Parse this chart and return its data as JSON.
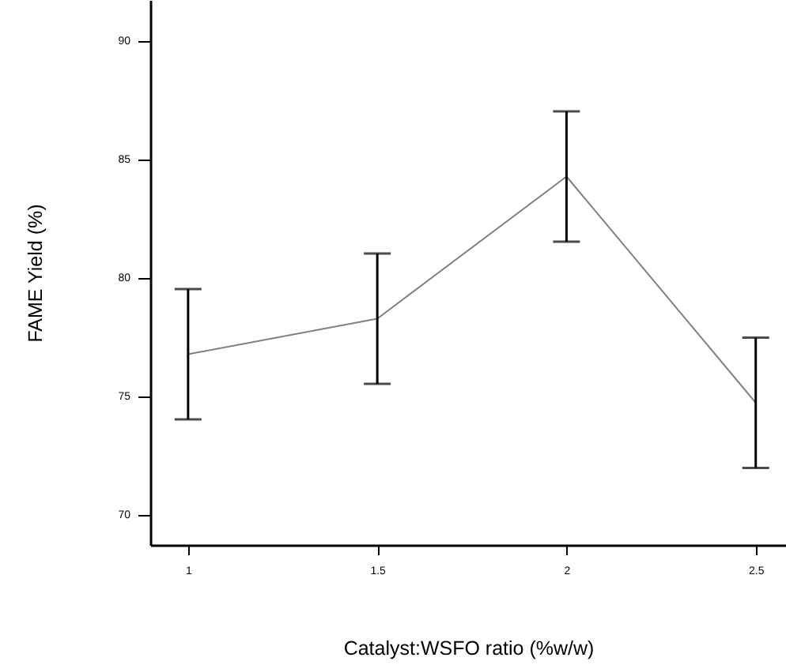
{
  "chart_data": {
    "type": "line",
    "xlabel": "Catalyst:WSFO ratio (%w/w)",
    "ylabel": "FAME Yield (%)",
    "x": [
      1,
      1.5,
      2,
      2.5
    ],
    "series": [
      {
        "color": "#808080",
        "values": [
          76.75,
          78.25,
          84.25,
          74.7
        ],
        "errors": [
          2.75,
          2.75,
          2.75,
          2.75
        ]
      }
    ],
    "xlim": [
      0.9,
      2.58
    ],
    "xticks": [
      1,
      1.5,
      2,
      2.5
    ],
    "ylim": [
      68.7,
      91.7
    ],
    "yticks": [
      70,
      75,
      80,
      85,
      90
    ],
    "grid": false,
    "marker": "none",
    "line_style": "solid"
  }
}
